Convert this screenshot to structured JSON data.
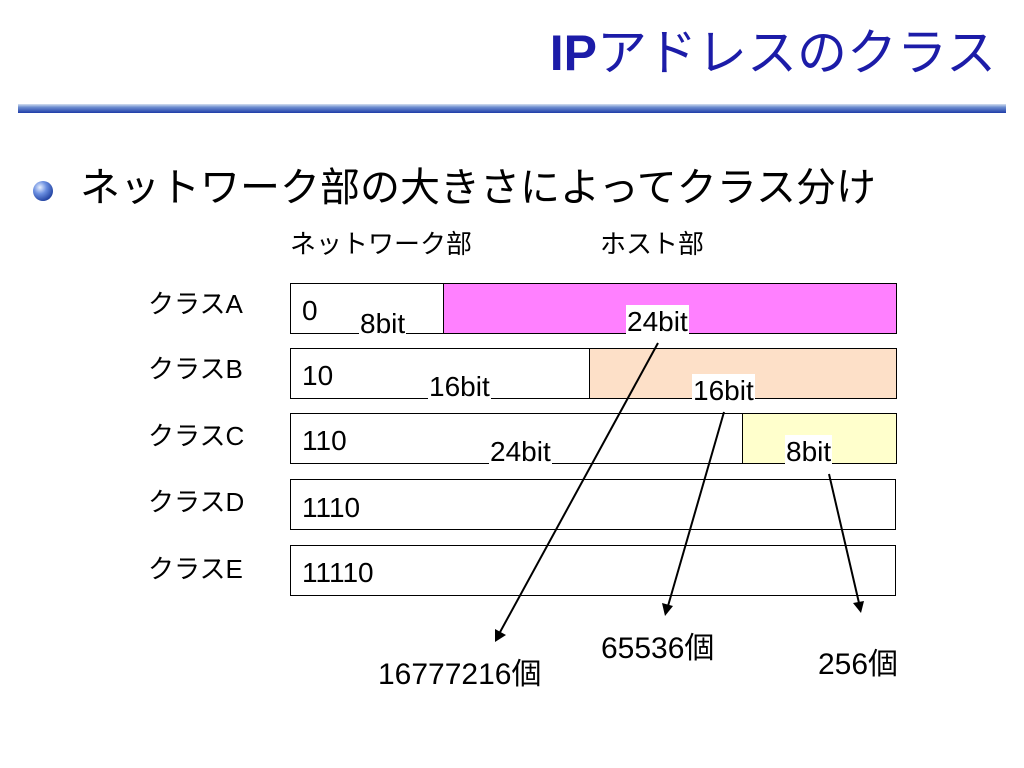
{
  "title": {
    "ip": "IP",
    "rest": "アドレスのクラス"
  },
  "bullet": "ネットワーク部の大きさによってクラス分け",
  "headers": {
    "network": "ネットワーク部",
    "host": "ホスト部"
  },
  "classes": [
    {
      "label_prefix": "クラス",
      "letter": "A",
      "bits": "0",
      "network_label": "8bit",
      "host_label": "24bit",
      "host_color": "#ff80ff"
    },
    {
      "label_prefix": "クラス",
      "letter": "B",
      "bits": "10",
      "network_label": "16bit",
      "host_label": "16bit",
      "host_color": "#fde0c8"
    },
    {
      "label_prefix": "クラス",
      "letter": "C",
      "bits": "110",
      "network_label": "24bit",
      "host_label": "8bit",
      "host_color": "#ffffcc"
    },
    {
      "label_prefix": "クラス",
      "letter": "D",
      "bits": "1110"
    },
    {
      "label_prefix": "クラス",
      "letter": "E",
      "bits": "11110"
    }
  ],
  "host_counts": [
    "16777216個",
    "65536個",
    "256個"
  ]
}
